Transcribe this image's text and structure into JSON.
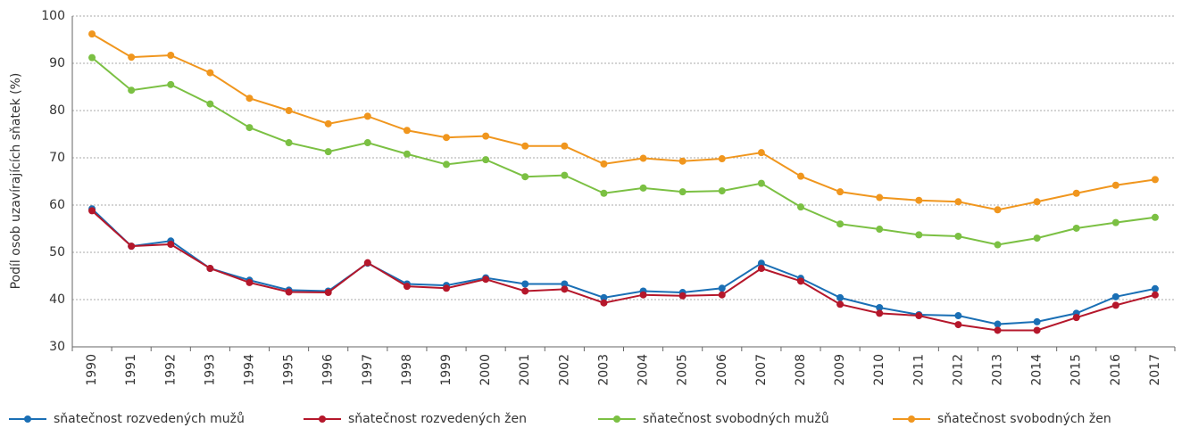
{
  "chart_data": {
    "type": "line",
    "y_label": "Podíl osob uzavírajících sňatek (%)",
    "categories": [
      "1990",
      "1991",
      "1992",
      "1993",
      "1994",
      "1995",
      "1996",
      "1997",
      "1998",
      "1999",
      "2000",
      "2001",
      "2002",
      "2003",
      "2004",
      "2005",
      "2006",
      "2007",
      "2008",
      "2009",
      "2010",
      "2011",
      "2012",
      "2013",
      "2014",
      "2015",
      "2016",
      "2017"
    ],
    "series": [
      {
        "name": "sňatečnost rozvedených mužů",
        "color": "#1a6fb5",
        "values": [
          59.2,
          51.3,
          52.4,
          46.6,
          44.1,
          42.0,
          41.8,
          47.7,
          43.3,
          43.0,
          44.6,
          43.3,
          43.3,
          40.4,
          41.8,
          41.5,
          42.4,
          47.7,
          44.5,
          40.4,
          38.3,
          36.8,
          36.6,
          34.8,
          35.3,
          37.1,
          40.6,
          42.3
        ]
      },
      {
        "name": "sňatečnost rozvedených žen",
        "color": "#b5172b",
        "values": [
          58.8,
          51.3,
          51.7,
          46.6,
          43.6,
          41.6,
          41.5,
          47.8,
          42.8,
          42.4,
          44.3,
          41.8,
          42.2,
          39.3,
          41.0,
          40.8,
          41.0,
          46.6,
          43.9,
          39.0,
          37.1,
          36.6,
          34.7,
          33.5,
          33.5,
          36.2,
          38.8,
          41.0
        ]
      },
      {
        "name": "sňatečnost svobodných mužů",
        "color": "#7bc043",
        "values": [
          91.2,
          84.3,
          85.5,
          81.4,
          76.4,
          73.2,
          71.3,
          73.2,
          70.8,
          68.6,
          69.6,
          66.0,
          66.3,
          62.5,
          63.6,
          62.8,
          63.0,
          64.6,
          59.6,
          56.0,
          54.9,
          53.7,
          53.4,
          51.6,
          53.0,
          55.1,
          56.3,
          57.4
        ]
      },
      {
        "name": "sňatečnost svobodných žen",
        "color": "#f0961e",
        "values": [
          96.2,
          91.3,
          91.7,
          88.0,
          82.6,
          80.0,
          77.2,
          78.8,
          75.8,
          74.3,
          74.6,
          72.5,
          72.5,
          68.7,
          69.9,
          69.3,
          69.8,
          71.1,
          66.1,
          62.8,
          61.6,
          61.0,
          60.7,
          59.0,
          60.7,
          62.5,
          64.2,
          65.4
        ]
      }
    ],
    "ylim": [
      30,
      100
    ],
    "yticks": [
      30,
      40,
      50,
      60,
      70,
      80,
      90,
      100
    ],
    "grid": true
  }
}
